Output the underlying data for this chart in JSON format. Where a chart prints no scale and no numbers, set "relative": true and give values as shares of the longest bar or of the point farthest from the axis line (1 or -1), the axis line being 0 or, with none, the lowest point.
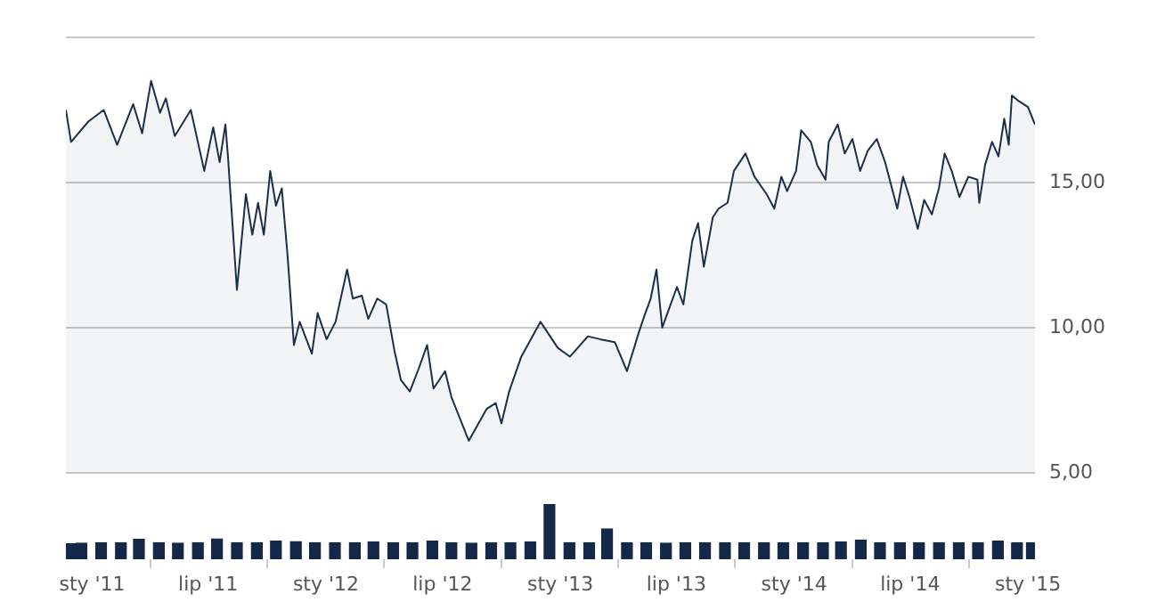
{
  "chart_data": [
    {
      "type": "area",
      "xlim": [
        "2010-11-21",
        "2015-01-12"
      ],
      "ylim": [
        5,
        20
      ],
      "yticks": [
        {
          "value": 5,
          "label": "5,00"
        },
        {
          "value": 10,
          "label": "10,00"
        },
        {
          "value": 15,
          "label": "15,00"
        },
        {
          "value": 20,
          "label": null
        }
      ],
      "grid": "y",
      "tick_labels": "y",
      "series": [
        {
          "color": "#1c2e4a",
          "x": [
            "2010-11-21",
            "2010-11-29",
            "2010-12-26",
            "2011-01-19",
            "2011-02-09",
            "2011-03-06",
            "2011-03-20",
            "2011-04-03",
            "2011-04-17",
            "2011-04-26",
            "2011-05-10",
            "2011-06-04",
            "2011-06-25",
            "2011-07-09",
            "2011-07-19",
            "2011-07-28",
            "2011-08-01",
            "2011-08-15",
            "2011-08-29",
            "2011-09-08",
            "2011-09-17",
            "2011-09-26",
            "2011-10-06",
            "2011-10-15",
            "2011-10-24",
            "2011-11-02",
            "2011-11-12",
            "2011-11-21",
            "2011-12-10",
            "2011-12-19",
            "2012-01-02",
            "2012-01-16",
            "2012-02-03",
            "2012-02-12",
            "2012-02-26",
            "2012-03-07",
            "2012-03-21",
            "2012-04-04",
            "2012-04-17",
            "2012-04-27",
            "2012-05-11",
            "2012-05-25",
            "2012-06-07",
            "2012-06-17",
            "2012-07-05",
            "2012-07-15",
            "2012-08-11",
            "2012-09-08",
            "2012-09-22",
            "2012-10-01",
            "2012-10-13",
            "2012-11-01",
            "2012-12-01",
            "2012-12-28",
            "2013-01-16",
            "2013-02-13",
            "2013-03-04",
            "2013-03-27",
            "2013-04-15",
            "2013-05-03",
            "2013-05-12",
            "2013-05-22",
            "2013-05-31",
            "2013-06-09",
            "2013-07-02",
            "2013-07-12",
            "2013-07-26",
            "2013-08-04",
            "2013-08-13",
            "2013-08-27",
            "2013-09-05",
            "2013-09-19",
            "2013-09-29",
            "2013-10-17",
            "2013-10-31",
            "2013-11-19",
            "2013-12-01",
            "2013-12-12",
            "2013-12-21",
            "2014-01-04",
            "2014-01-12",
            "2014-01-27",
            "2014-02-06",
            "2014-02-19",
            "2014-02-24",
            "2014-03-10",
            "2014-03-21",
            "2014-04-02",
            "2014-04-14",
            "2014-04-26",
            "2014-05-10",
            "2014-05-23",
            "2014-06-11",
            "2014-06-20",
            "2014-06-30",
            "2014-07-13",
            "2014-07-23",
            "2014-08-04",
            "2014-08-15",
            "2014-08-24",
            "2014-09-04",
            "2014-09-16",
            "2014-09-30",
            "2014-10-14",
            "2014-10-17",
            "2014-10-26",
            "2014-11-06",
            "2014-11-16",
            "2014-11-25",
            "2014-12-02",
            "2014-12-07",
            "2014-12-18",
            "2015-01-01",
            "2015-01-12"
          ],
          "values": [
            17.5,
            16.4,
            17.1,
            17.5,
            16.3,
            17.7,
            16.7,
            18.5,
            17.4,
            17.9,
            16.6,
            17.5,
            15.4,
            16.9,
            15.7,
            17.0,
            15.9,
            11.3,
            14.6,
            13.2,
            14.3,
            13.2,
            15.4,
            14.2,
            14.8,
            12.5,
            9.4,
            10.2,
            9.1,
            10.5,
            9.6,
            10.2,
            12.0,
            11.0,
            11.1,
            10.3,
            11.0,
            10.8,
            9.2,
            8.2,
            7.8,
            8.6,
            9.4,
            7.9,
            8.5,
            7.6,
            6.1,
            7.2,
            7.4,
            6.7,
            7.8,
            9.0,
            10.2,
            9.3,
            9.0,
            9.7,
            9.6,
            9.5,
            8.5,
            9.8,
            10.4,
            11.0,
            12.0,
            10.0,
            11.4,
            10.8,
            13.0,
            13.6,
            12.1,
            13.8,
            14.1,
            14.3,
            15.4,
            16.0,
            15.2,
            14.6,
            14.1,
            15.2,
            14.7,
            15.4,
            16.8,
            16.4,
            15.6,
            15.1,
            16.4,
            17.0,
            16.0,
            16.5,
            15.4,
            16.1,
            16.5,
            15.7,
            14.1,
            15.2,
            14.5,
            13.4,
            14.4,
            13.9,
            14.8,
            16.0,
            15.4,
            14.5,
            15.2,
            15.1,
            14.3,
            15.6,
            16.4,
            15.9,
            17.2,
            16.3,
            18.0,
            17.8,
            17.6,
            17.0
          ]
        }
      ]
    },
    {
      "type": "bar",
      "relative": true,
      "xlim": [
        "2010-11-21",
        "2015-01-12"
      ],
      "xticks": [
        {
          "value": "2011-01-01",
          "label": "sty '11"
        },
        {
          "value": "2011-07-01",
          "label": "lip '11"
        },
        {
          "value": "2012-01-01",
          "label": "sty '12"
        },
        {
          "value": "2012-07-01",
          "label": "lip '12"
        },
        {
          "value": "2013-01-01",
          "label": "sty '13"
        },
        {
          "value": "2013-07-01",
          "label": "lip '13"
        },
        {
          "value": "2014-01-01",
          "label": "sty '14"
        },
        {
          "value": "2014-07-01",
          "label": "lip '14"
        },
        {
          "value": "2015-01-01",
          "label": "sty '15"
        }
      ],
      "tick_labels": "x",
      "series": [
        {
          "color": "#14284a",
          "x": [
            "2010-11-28",
            "2010-12-15",
            "2011-01-15",
            "2011-02-15",
            "2011-03-15",
            "2011-04-15",
            "2011-05-15",
            "2011-06-15",
            "2011-07-15",
            "2011-08-15",
            "2011-09-15",
            "2011-10-15",
            "2011-11-15",
            "2011-12-15",
            "2012-01-15",
            "2012-02-15",
            "2012-03-15",
            "2012-04-15",
            "2012-05-15",
            "2012-06-15",
            "2012-07-15",
            "2012-08-15",
            "2012-09-15",
            "2012-10-15",
            "2012-11-15",
            "2012-12-15",
            "2013-01-15",
            "2013-02-15",
            "2013-03-15",
            "2013-04-15",
            "2013-05-15",
            "2013-06-15",
            "2013-07-15",
            "2013-08-15",
            "2013-09-15",
            "2013-10-15",
            "2013-11-15",
            "2013-12-15",
            "2014-01-15",
            "2014-02-15",
            "2014-03-15",
            "2014-04-15",
            "2014-05-15",
            "2014-06-15",
            "2014-07-15",
            "2014-08-15",
            "2014-09-15",
            "2014-10-15",
            "2014-11-15",
            "2014-12-15",
            "2015-01-07"
          ],
          "values": [
            0.28,
            0.29,
            0.3,
            0.3,
            0.36,
            0.3,
            0.29,
            0.3,
            0.37,
            0.3,
            0.3,
            0.33,
            0.32,
            0.3,
            0.3,
            0.3,
            0.31,
            0.3,
            0.3,
            0.33,
            0.3,
            0.29,
            0.3,
            0.3,
            0.31,
            1,
            0.3,
            0.3,
            0.55,
            0.3,
            0.3,
            0.29,
            0.3,
            0.3,
            0.3,
            0.3,
            0.3,
            0.3,
            0.3,
            0.3,
            0.31,
            0.35,
            0.3,
            0.3,
            0.3,
            0.3,
            0.3,
            0.3,
            0.33,
            0.3,
            0.3
          ]
        }
      ]
    }
  ]
}
